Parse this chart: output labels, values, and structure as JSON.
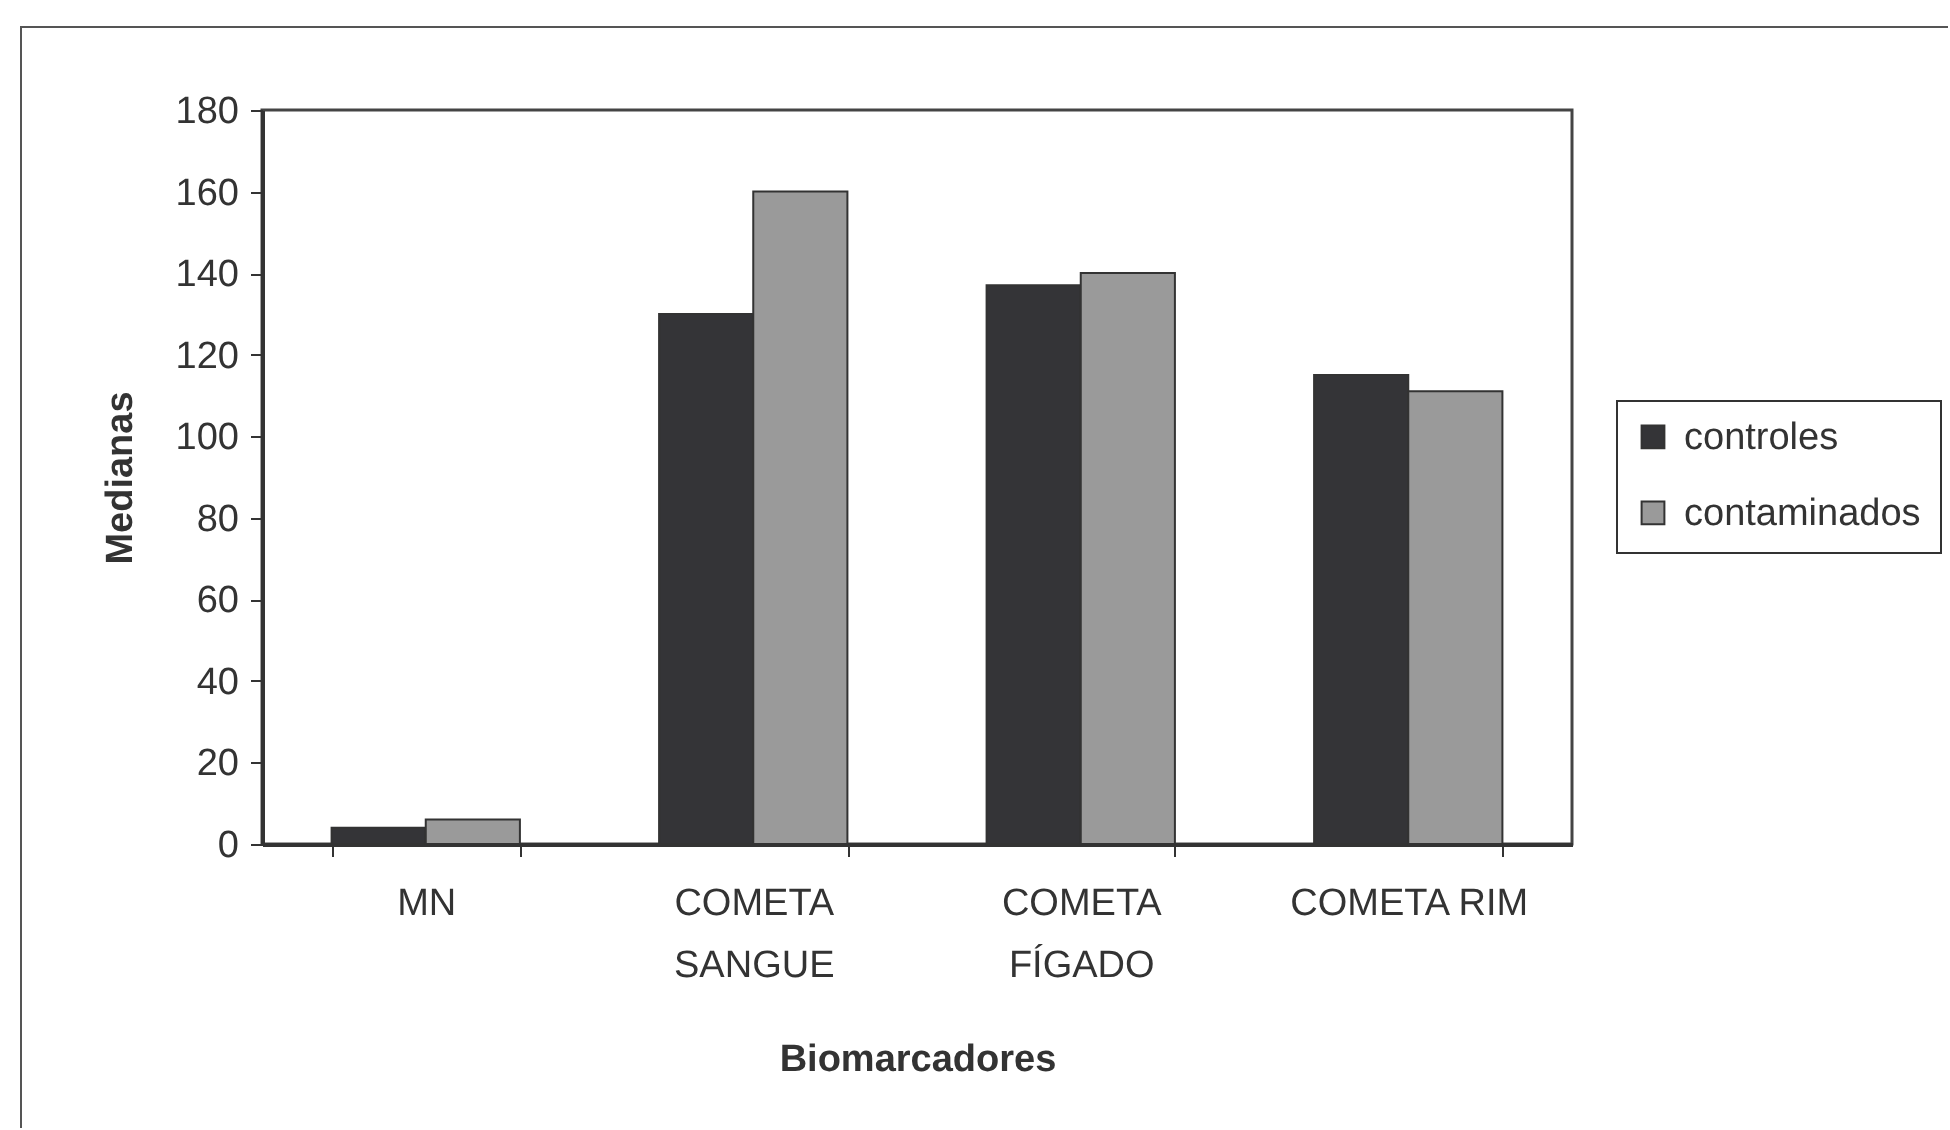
{
  "chart_data": {
    "type": "bar",
    "xlabel": "Biomarcadores",
    "ylabel": "Medianas",
    "categories": [
      "MN",
      "COMETA SANGUE",
      "COMETA FÍGADO",
      "COMETA RIM"
    ],
    "series": [
      {
        "name": "controles",
        "color": "#343437",
        "values": [
          4,
          130,
          137,
          115
        ]
      },
      {
        "name": "contaminados",
        "color": "#9a9a9a",
        "values": [
          6,
          160,
          140,
          111
        ]
      }
    ],
    "ylim": [
      0,
      180
    ],
    "yticks": [
      0,
      20,
      40,
      60,
      80,
      100,
      120,
      140,
      160,
      180
    ],
    "legend": "right"
  }
}
